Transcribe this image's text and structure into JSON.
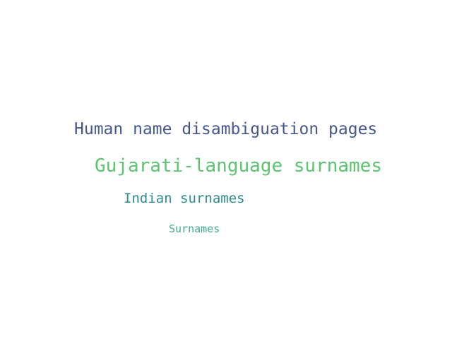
{
  "words": [
    {
      "text": "Human name disambiguation pages",
      "color": "#46568f"
    },
    {
      "text": "Gujarati-language surnames",
      "color": "#5cc46e"
    },
    {
      "text": "Indian surnames",
      "color": "#2a8c8c"
    },
    {
      "text": "Surnames",
      "color": "#3fae86"
    }
  ]
}
